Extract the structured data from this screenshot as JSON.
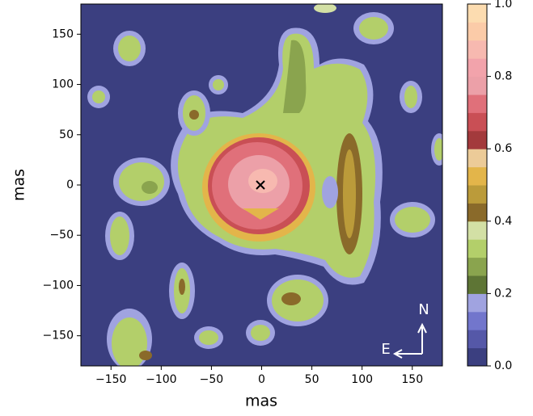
{
  "chart_data": {
    "type": "image",
    "xlabel": "mas",
    "ylabel": "mas",
    "xlim": [
      -180,
      180
    ],
    "ylim": [
      -180,
      180
    ],
    "xticks": [
      {
        "value": -150,
        "label": "−150"
      },
      {
        "value": -100,
        "label": "−100"
      },
      {
        "value": -50,
        "label": "−50"
      },
      0,
      50,
      100,
      150
    ],
    "yticks": [
      {
        "value": -150,
        "label": "−150"
      },
      {
        "value": -100,
        "label": "−100"
      },
      {
        "value": -50,
        "label": "−50"
      },
      0,
      50,
      100,
      150
    ],
    "annotations": [
      "N",
      "E"
    ],
    "colorbar": {
      "lim": [
        0,
        1
      ],
      "ticks": [
        {
          "value": 0,
          "label": "0.0"
        },
        0.2,
        0.4,
        0.6,
        0.8,
        {
          "value": 1,
          "label": "1.0"
        }
      ],
      "colors": [
        "#3b3f80",
        "#5558a8",
        "#7276cc",
        "#a0a3e0",
        "#5e7535",
        "#8aa44e",
        "#b3cf6a",
        "#d3e0a5",
        "#8a6a2a",
        "#bb9b3a",
        "#e3b54a",
        "#eccb98",
        "#a33a3c",
        "#c94f55",
        "#e0707a",
        "#eca0a8",
        "#f2a3ab",
        "#f7b9b0",
        "#fbcba8",
        "#fcdcb0"
      ]
    }
  }
}
